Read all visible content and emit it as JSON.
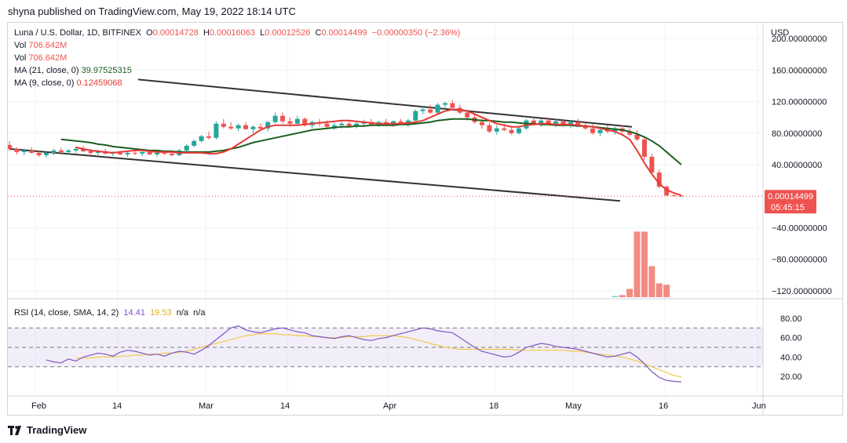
{
  "header": {
    "published": "shyna published on TradingView.com, May 19, 2022 18:14 UTC"
  },
  "legend": {
    "symbol": "Luna / U.S. Dollar, 1D, BITFINEX",
    "open_label": "O",
    "open": "0.00014728",
    "high_label": "H",
    "high": "0.00016063",
    "low_label": "L",
    "low": "0.00012526",
    "close_label": "C",
    "close": "0.00014499",
    "change": "−0.00000350 (−2.36%)",
    "vol1_label": "Vol",
    "vol1": "706.642M",
    "vol2_label": "Vol",
    "vol2": "706.642M",
    "ma21_label": "MA (21, close, 0)",
    "ma21": "39.97525315",
    "ma9_label": "MA (9, close, 0)",
    "ma9": "0.12459068",
    "rsi_label": "RSI (14, close, SMA, 14, 2)",
    "rsi_value": "14.41",
    "rsi_sma": "19.53",
    "rsi_na1": "n/a",
    "rsi_na2": "n/a"
  },
  "price_axis": {
    "currency": "USD",
    "ticks": [
      "200.00000000",
      "160.00000000",
      "120.00000000",
      "80.00000000",
      "40.00000000",
      "−40.00000000",
      "−80.00000000",
      "−120.00000000"
    ],
    "last_price": "0.00014499",
    "countdown": "05:45:15"
  },
  "rsi_axis": {
    "ticks": [
      "80.00",
      "60.00",
      "40.00",
      "20.00"
    ]
  },
  "time_axis": {
    "ticks": [
      "Feb",
      "14",
      "Mar",
      "14",
      "Apr",
      "18",
      "May",
      "16",
      "Jun"
    ]
  },
  "footer": {
    "brand": "TradingView"
  },
  "colors": {
    "up": "#26a69a",
    "down": "#ef5350",
    "ma21": "#1b5e20",
    "ma9": "#e53935",
    "rsi": "#7e57c2",
    "rsi_sma": "#f2c94c",
    "channel": "#333333"
  },
  "chart_data": {
    "type": "candlestick",
    "price_ylim": [
      -130,
      215
    ],
    "candles": [
      [
        65,
        70,
        58,
        60
      ],
      [
        60,
        62,
        53,
        56
      ],
      [
        56,
        60,
        52,
        58
      ],
      [
        58,
        62,
        54,
        55
      ],
      [
        55,
        58,
        50,
        52
      ],
      [
        52,
        57,
        49,
        55
      ],
      [
        55,
        60,
        52,
        58
      ],
      [
        58,
        62,
        54,
        56
      ],
      [
        56,
        60,
        52,
        58
      ],
      [
        58,
        63,
        55,
        60
      ],
      [
        60,
        64,
        56,
        57
      ],
      [
        57,
        60,
        53,
        55
      ],
      [
        55,
        59,
        52,
        57
      ],
      [
        57,
        60,
        53,
        54
      ],
      [
        54,
        57,
        51,
        55
      ],
      [
        55,
        58,
        52,
        53
      ],
      [
        53,
        56,
        50,
        55
      ],
      [
        55,
        58,
        52,
        54
      ],
      [
        54,
        57,
        51,
        56
      ],
      [
        56,
        58,
        52,
        53
      ],
      [
        53,
        56,
        50,
        55
      ],
      [
        55,
        58,
        52,
        54
      ],
      [
        54,
        57,
        51,
        52
      ],
      [
        52,
        60,
        51,
        58
      ],
      [
        58,
        66,
        56,
        64
      ],
      [
        64,
        72,
        62,
        70
      ],
      [
        70,
        78,
        68,
        76
      ],
      [
        76,
        82,
        72,
        74
      ],
      [
        74,
        95,
        72,
        92
      ],
      [
        92,
        98,
        86,
        88
      ],
      [
        88,
        94,
        84,
        86
      ],
      [
        86,
        92,
        82,
        90
      ],
      [
        90,
        94,
        84,
        85
      ],
      [
        85,
        90,
        80,
        88
      ],
      [
        88,
        92,
        84,
        86
      ],
      [
        86,
        95,
        82,
        94
      ],
      [
        94,
        106,
        92,
        102
      ],
      [
        102,
        106,
        92,
        95
      ],
      [
        95,
        100,
        88,
        92
      ],
      [
        92,
        102,
        90,
        98
      ],
      [
        98,
        100,
        88,
        90
      ],
      [
        90,
        96,
        86,
        94
      ],
      [
        94,
        98,
        88,
        92
      ],
      [
        92,
        96,
        86,
        88
      ],
      [
        88,
        93,
        84,
        90
      ],
      [
        90,
        95,
        86,
        92
      ],
      [
        92,
        96,
        88,
        89
      ],
      [
        89,
        94,
        86,
        92
      ],
      [
        92,
        97,
        88,
        94
      ],
      [
        94,
        98,
        90,
        91
      ],
      [
        91,
        96,
        88,
        94
      ],
      [
        94,
        98,
        90,
        92
      ],
      [
        92,
        96,
        88,
        95
      ],
      [
        95,
        98,
        90,
        93
      ],
      [
        93,
        98,
        88,
        96
      ],
      [
        96,
        110,
        95,
        108
      ],
      [
        108,
        114,
        104,
        110
      ],
      [
        110,
        116,
        104,
        106
      ],
      [
        106,
        118,
        104,
        116
      ],
      [
        116,
        120,
        110,
        118
      ],
      [
        118,
        122,
        110,
        112
      ],
      [
        112,
        116,
        104,
        106
      ],
      [
        106,
        110,
        96,
        100
      ],
      [
        100,
        104,
        92,
        94
      ],
      [
        94,
        98,
        86,
        90
      ],
      [
        90,
        94,
        80,
        82
      ],
      [
        82,
        90,
        78,
        86
      ],
      [
        86,
        92,
        82,
        84
      ],
      [
        84,
        88,
        78,
        80
      ],
      [
        80,
        88,
        78,
        86
      ],
      [
        86,
        98,
        84,
        96
      ],
      [
        96,
        100,
        90,
        92
      ],
      [
        92,
        98,
        88,
        96
      ],
      [
        96,
        100,
        90,
        92
      ],
      [
        92,
        98,
        88,
        95
      ],
      [
        95,
        98,
        88,
        90
      ],
      [
        90,
        96,
        86,
        94
      ],
      [
        94,
        98,
        88,
        90
      ],
      [
        90,
        94,
        84,
        86
      ],
      [
        86,
        92,
        78,
        80
      ],
      [
        80,
        88,
        76,
        84
      ],
      [
        84,
        90,
        80,
        82
      ],
      [
        82,
        88,
        78,
        86
      ],
      [
        86,
        90,
        80,
        82
      ],
      [
        82,
        86,
        76,
        78
      ],
      [
        78,
        84,
        70,
        72
      ],
      [
        72,
        76,
        46,
        50
      ],
      [
        50,
        54,
        28,
        30
      ],
      [
        30,
        34,
        10,
        12
      ],
      [
        12,
        14,
        0,
        1
      ],
      [
        1,
        2,
        0,
        0.5
      ],
      [
        0.5,
        1,
        0,
        0.3
      ]
    ],
    "ma21": [
      72,
      71,
      70,
      69,
      68,
      66,
      65,
      63,
      62,
      61,
      60,
      59,
      58,
      58,
      57,
      57,
      56,
      56,
      56,
      56,
      56,
      57,
      58,
      60,
      62,
      65,
      68,
      70,
      72,
      74,
      76,
      78,
      80,
      82,
      84,
      85,
      86,
      87,
      88,
      88,
      89,
      89,
      90,
      90,
      90,
      90,
      91,
      91,
      92,
      93,
      94,
      96,
      97,
      98,
      98,
      98,
      97,
      96,
      96,
      95,
      94,
      94,
      93,
      92,
      92,
      91,
      91,
      90,
      90,
      90,
      89,
      89,
      88,
      87,
      86,
      85,
      84,
      82,
      79,
      75,
      70,
      64,
      56,
      48,
      40
    ],
    "ma9": [
      62,
      60,
      58,
      57,
      56,
      55,
      56,
      57,
      58,
      58,
      57,
      56,
      56,
      56,
      55,
      55,
      55,
      55,
      54,
      54,
      56,
      60,
      66,
      72,
      78,
      84,
      88,
      90,
      90,
      90,
      90,
      91,
      92,
      93,
      94,
      95,
      96,
      96,
      95,
      94,
      93,
      92,
      92,
      92,
      92,
      93,
      94,
      96,
      100,
      104,
      108,
      110,
      110,
      108,
      104,
      100,
      96,
      92,
      90,
      88,
      88,
      90,
      91,
      92,
      92,
      91,
      91,
      91,
      90,
      89,
      88,
      86,
      84,
      82,
      78,
      72,
      58,
      42,
      28,
      16,
      8,
      4,
      1
    ],
    "volume": [
      0,
      0,
      0,
      0,
      0,
      0,
      0,
      0,
      0,
      0,
      0,
      0,
      0,
      0,
      0,
      0,
      0,
      0,
      0,
      0,
      0,
      0,
      0,
      0,
      0,
      0,
      0,
      0,
      0,
      0,
      0,
      0,
      0,
      0,
      0,
      0,
      0,
      0,
      0,
      0,
      0,
      0,
      0,
      0,
      0,
      0,
      0,
      0,
      0,
      0,
      0,
      0,
      0,
      0,
      0,
      0,
      0,
      0,
      0,
      0,
      0,
      0,
      0,
      0,
      0,
      0,
      0,
      0,
      0,
      0,
      0,
      0,
      0,
      0,
      0,
      0,
      0,
      0,
      0,
      0,
      0,
      0,
      0.01,
      0.03,
      0.12,
      0.95,
      0.95,
      0.45,
      0.2,
      0.18
    ],
    "rsi": [
      37,
      35,
      34,
      38,
      36,
      40,
      42,
      44,
      43,
      41,
      45,
      47,
      46,
      44,
      42,
      43,
      41,
      44,
      46,
      45,
      43,
      47,
      52,
      58,
      64,
      70,
      72,
      68,
      66,
      65,
      67,
      69,
      70,
      68,
      66,
      65,
      62,
      61,
      60,
      59,
      61,
      62,
      60,
      58,
      57,
      59,
      60,
      62,
      64,
      66,
      68,
      70,
      69,
      67,
      66,
      65,
      60,
      55,
      50,
      46,
      44,
      42,
      40,
      41,
      45,
      50,
      52,
      54,
      53,
      51,
      50,
      49,
      48,
      46,
      44,
      42,
      40,
      41,
      43,
      45,
      40,
      33,
      25,
      19,
      16,
      15,
      14.41
    ],
    "rsi_sma": [
      39,
      39,
      39,
      40,
      40,
      40,
      41,
      41,
      42,
      42,
      43,
      43,
      44,
      44,
      45,
      46,
      48,
      50,
      52,
      54,
      56,
      58,
      60,
      62,
      63,
      64,
      64,
      64,
      63,
      63,
      62,
      62,
      61,
      61,
      60,
      60,
      60,
      61,
      61,
      61,
      62,
      62,
      62,
      62,
      61,
      60,
      58,
      56,
      54,
      52,
      50,
      49,
      48,
      48,
      48,
      48,
      48,
      48,
      48,
      48,
      47,
      47,
      47,
      47,
      47,
      47,
      47,
      46,
      46,
      45,
      44,
      43,
      42,
      41,
      40,
      38,
      36,
      33,
      30,
      27,
      24,
      21,
      19.53
    ],
    "channel_upper": [
      [
        0.185,
        148
      ],
      [
        0.895,
        88
      ]
    ],
    "channel_lower": [
      [
        0.0,
        60
      ],
      [
        0.878,
        -6
      ]
    ],
    "rsi_levels": [
      70,
      50,
      30
    ]
  }
}
